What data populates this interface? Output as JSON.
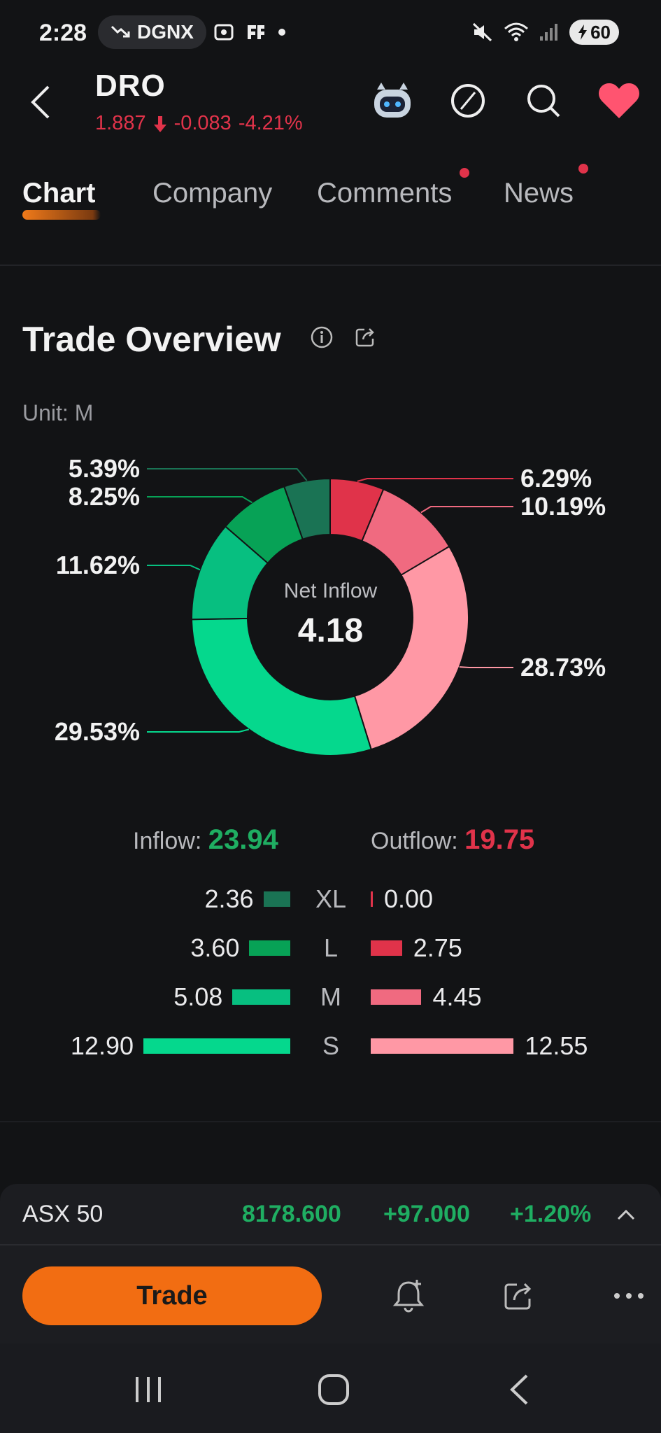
{
  "status_bar": {
    "time": "2:28",
    "pill_text": "DGNX",
    "battery": "60"
  },
  "header": {
    "ticker": "DRO",
    "price": "1.887",
    "change": "-0.083",
    "change_pct": "-4.21%"
  },
  "tabs": [
    {
      "label": "Chart",
      "active": true
    },
    {
      "label": "Company",
      "active": false
    },
    {
      "label": "Comments",
      "active": false,
      "dot": true
    },
    {
      "label": "News",
      "active": false,
      "dot": true
    }
  ],
  "overview": {
    "title": "Trade Overview",
    "unit": "Unit: M",
    "center_label": "Net Inflow",
    "center_value": "4.18"
  },
  "chart_data": {
    "type": "pie",
    "slices": [
      {
        "label": "6.29%",
        "value": 6.29,
        "color": "#e0334a"
      },
      {
        "label": "10.19%",
        "value": 10.19,
        "color": "#f06a80"
      },
      {
        "label": "28.73%",
        "value": 28.73,
        "color": "#ff98a5"
      },
      {
        "label": "29.53%",
        "value": 29.53,
        "color": "#05d88d"
      },
      {
        "label": "11.62%",
        "value": 11.62,
        "color": "#07bf80"
      },
      {
        "label": "8.25%",
        "value": 8.25,
        "color": "#07a256"
      },
      {
        "label": "5.39%",
        "value": 5.39,
        "color": "#1a7354"
      }
    ]
  },
  "flows": {
    "inflow_label": "Inflow:",
    "inflow_value": "23.94",
    "outflow_label": "Outflow:",
    "outflow_value": "19.75",
    "rows": [
      {
        "cat": "XL",
        "in": "2.36",
        "out": "0.00",
        "in_num": 2.36,
        "out_num": 0.0,
        "in_color": "#1a7354",
        "out_color": "#e0334a"
      },
      {
        "cat": "L",
        "in": "3.60",
        "out": "2.75",
        "in_num": 3.6,
        "out_num": 2.75,
        "in_color": "#07a256",
        "out_color": "#e0334a"
      },
      {
        "cat": "M",
        "in": "5.08",
        "out": "4.45",
        "in_num": 5.08,
        "out_num": 4.45,
        "in_color": "#07bf80",
        "out_color": "#f06a80"
      },
      {
        "cat": "S",
        "in": "12.90",
        "out": "12.55",
        "in_num": 12.9,
        "out_num": 12.55,
        "in_color": "#05d88d",
        "out_color": "#ff98a5"
      }
    ]
  },
  "index": {
    "name": "ASX 50",
    "value": "8178.600",
    "change": "+97.000",
    "change_pct": "+1.20%"
  },
  "actions": {
    "trade_label": "Trade"
  },
  "colors": {
    "down": "#e0334a",
    "up": "#1fae62",
    "accent": "#f26d12"
  }
}
